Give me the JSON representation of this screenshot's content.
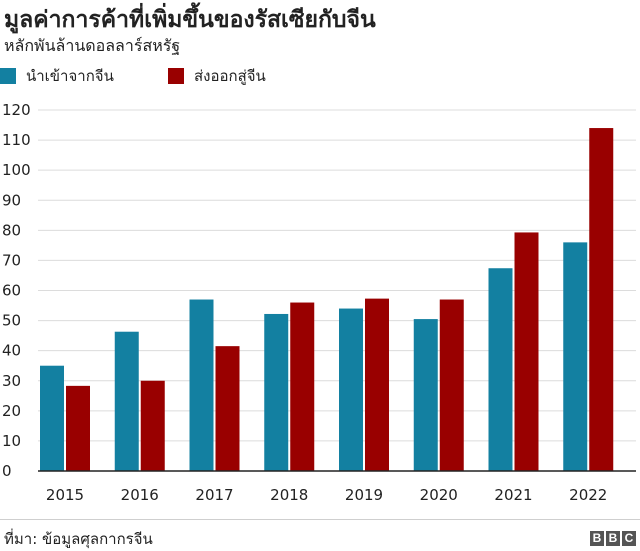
{
  "chart_data": {
    "type": "bar",
    "title": "มูลค่าการค้าที่เพิ่มขึ้นของรัสเซียกับจีน",
    "subtitle": "หลักพันล้านดอลลาร์สหรัฐ",
    "categories": [
      "2015",
      "2016",
      "2017",
      "2018",
      "2019",
      "2020",
      "2021",
      "2022"
    ],
    "series": [
      {
        "name": "นำเข้าจากจีน",
        "color": "#1380A1",
        "values": [
          35,
          46.3,
          57,
          52.2,
          54,
          50.5,
          67.4,
          76
        ]
      },
      {
        "name": "ส่งออกสู่จีน",
        "color": "#990000",
        "values": [
          28.3,
          30,
          41.5,
          56,
          57.3,
          57,
          79.3,
          114
        ]
      }
    ],
    "ylim": [
      0,
      120
    ],
    "yticks": [
      0,
      10,
      20,
      30,
      40,
      50,
      60,
      70,
      80,
      90,
      100,
      110,
      120
    ],
    "grid": true,
    "legend_position": "top-left",
    "source": "ที่มา: ข้อมูลศุลกากรจีน",
    "logo": "BBC"
  }
}
